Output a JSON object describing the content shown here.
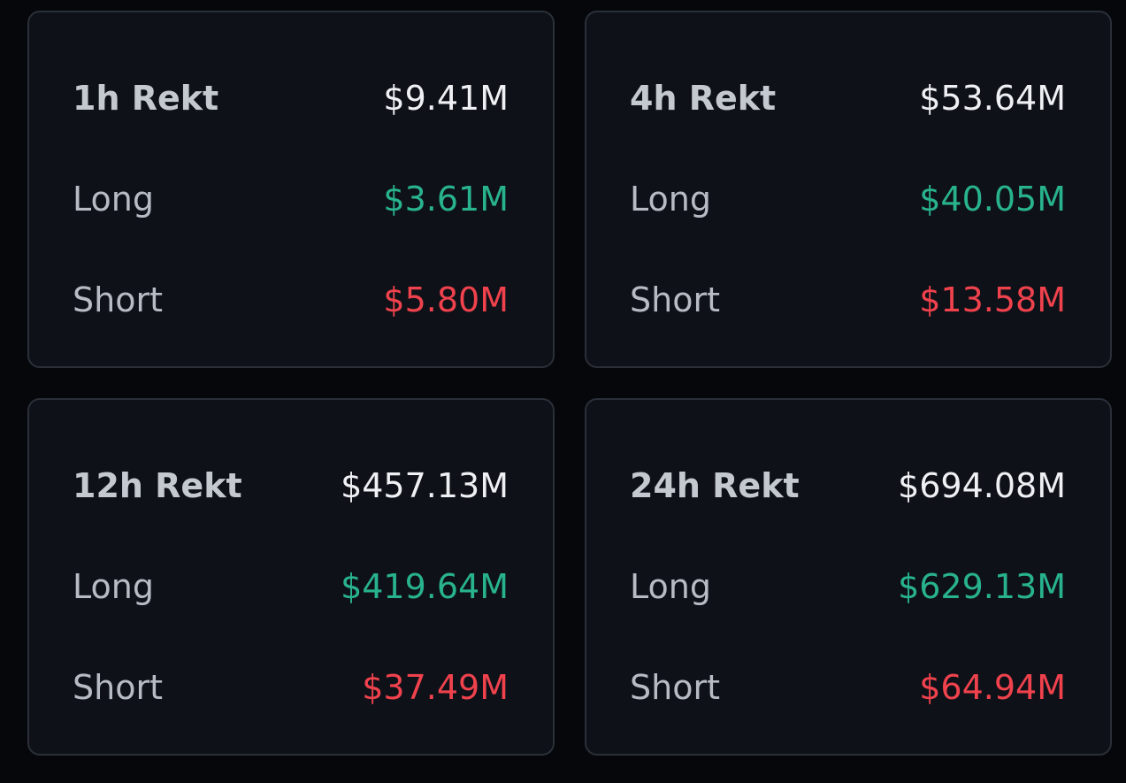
{
  "colors": {
    "background": "#05070b",
    "card_background": "#0e1118",
    "card_border": "#2a2f38",
    "long": "#28b38d",
    "short": "#f0424d",
    "total": "#eef0f3",
    "label": "#b7bcc4"
  },
  "cards": [
    {
      "title": "1h Rekt",
      "total": "$9.41M",
      "long_label": "Long",
      "long": "$3.61M",
      "short_label": "Short",
      "short": "$5.80M"
    },
    {
      "title": "4h Rekt",
      "total": "$53.64M",
      "long_label": "Long",
      "long": "$40.05M",
      "short_label": "Short",
      "short": "$13.58M"
    },
    {
      "title": "12h Rekt",
      "total": "$457.13M",
      "long_label": "Long",
      "long": "$419.64M",
      "short_label": "Short",
      "short": "$37.49M"
    },
    {
      "title": "24h Rekt",
      "total": "$694.08M",
      "long_label": "Long",
      "long": "$629.13M",
      "short_label": "Short",
      "short": "$64.94M"
    }
  ]
}
